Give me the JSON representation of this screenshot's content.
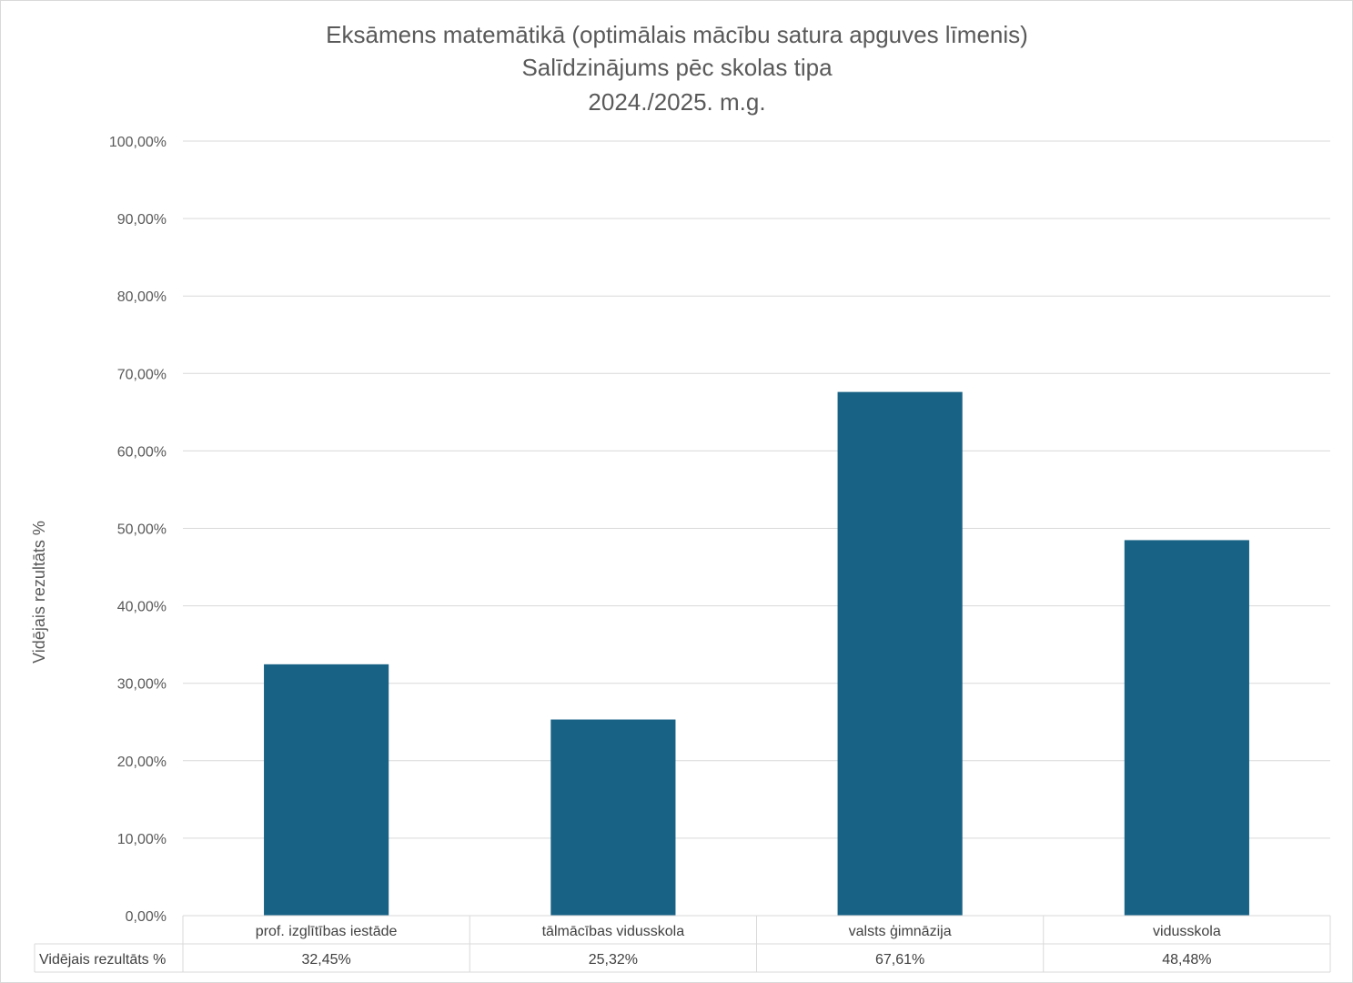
{
  "chart_data": {
    "type": "bar",
    "title": [
      "Eksāmens matemātikā (optimālais mācību satura apguves līmenis)",
      "Salīdzinājums pēc skolas tipa",
      "2024./2025. m.g."
    ],
    "ylabel": "Vidējais rezultāts %",
    "ylim": [
      0,
      100
    ],
    "yticks": [
      0,
      10,
      20,
      30,
      40,
      50,
      60,
      70,
      80,
      90,
      100
    ],
    "ytick_labels": [
      "0,00%",
      "10,00%",
      "20,00%",
      "30,00%",
      "40,00%",
      "50,00%",
      "60,00%",
      "70,00%",
      "80,00%",
      "90,00%",
      "100,00%"
    ],
    "grid": true,
    "categories": [
      "prof. izglītības iestāde",
      "tālmācības vidusskola",
      "valsts ģimnāzija",
      "vidusskola"
    ],
    "series": [
      {
        "name": "Vidējais rezultāts %",
        "values": [
          32.45,
          25.32,
          67.61,
          48.48
        ],
        "value_labels": [
          "32,45%",
          "25,32%",
          "67,61%",
          "48,48%"
        ],
        "color": "#176285"
      }
    ],
    "data_table": true
  }
}
